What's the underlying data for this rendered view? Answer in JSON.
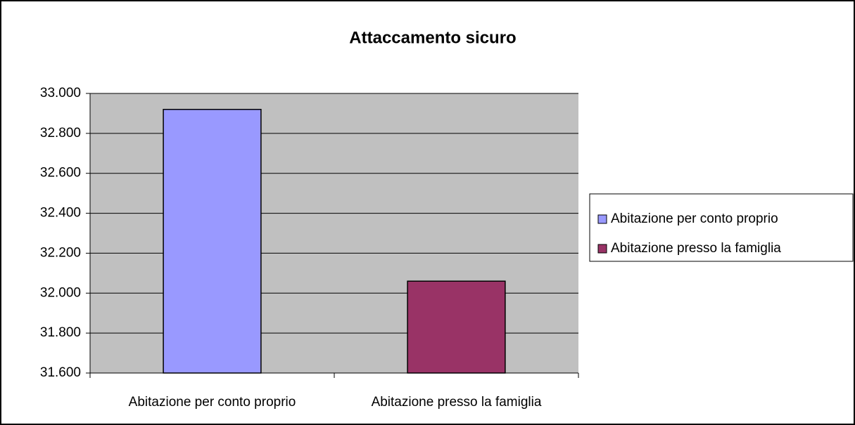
{
  "chart_data": {
    "type": "bar",
    "title": "Attaccamento sicuro",
    "categories": [
      "Abitazione per conto proprio",
      "Abitazione presso la famiglia"
    ],
    "values": [
      32.92,
      32.06
    ],
    "colors": [
      "#9999ff",
      "#993366"
    ],
    "ylim": [
      31.6,
      33.0
    ],
    "yticks": [
      {
        "value": 31.6,
        "label": "31.600"
      },
      {
        "value": 31.8,
        "label": "31.800"
      },
      {
        "value": 32.0,
        "label": "32.000"
      },
      {
        "value": 32.2,
        "label": "32.200"
      },
      {
        "value": 32.4,
        "label": "32.400"
      },
      {
        "value": 32.6,
        "label": "32.600"
      },
      {
        "value": 32.8,
        "label": "32.800"
      },
      {
        "value": 33.0,
        "label": "33.000"
      }
    ],
    "grid": true,
    "legend": "right"
  }
}
